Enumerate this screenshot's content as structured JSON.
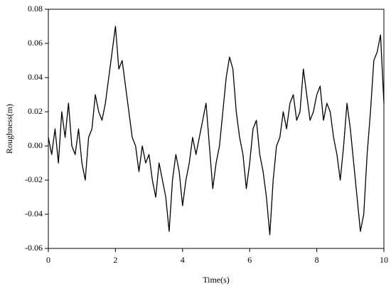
{
  "chart_data": {
    "type": "line",
    "x_label": "Time(s)",
    "y_label": "Roughness(m)",
    "x": [
      0,
      0.1,
      0.2,
      0.3,
      0.4,
      0.5,
      0.6,
      0.7,
      0.8,
      0.9,
      1,
      1.1,
      1.2,
      1.3,
      1.4,
      1.5,
      1.6,
      1.7,
      1.8,
      1.9,
      2,
      2.1,
      2.2,
      2.3,
      2.4,
      2.5,
      2.6,
      2.7,
      2.8,
      2.9,
      3,
      3.1,
      3.2,
      3.3,
      3.4,
      3.5,
      3.6,
      3.7,
      3.8,
      3.9,
      4,
      4.1,
      4.2,
      4.3,
      4.4,
      4.5,
      4.6,
      4.7,
      4.8,
      4.9,
      5,
      5.1,
      5.2,
      5.3,
      5.4,
      5.5,
      5.6,
      5.7,
      5.8,
      5.9,
      6,
      6.1,
      6.2,
      6.3,
      6.4,
      6.5,
      6.6,
      6.7,
      6.8,
      6.9,
      7,
      7.1,
      7.2,
      7.3,
      7.4,
      7.5,
      7.6,
      7.7,
      7.8,
      7.9,
      8,
      8.1,
      8.2,
      8.3,
      8.4,
      8.5,
      8.6,
      8.7,
      8.8,
      8.9,
      9,
      9.1,
      9.2,
      9.3,
      9.4,
      9.5,
      9.6,
      9.7,
      9.8,
      9.9,
      10
    ],
    "series": [
      {
        "color": "#000000",
        "values": [
          0.005,
          -0.005,
          0.01,
          -0.01,
          0.02,
          0.005,
          0.025,
          0,
          -0.005,
          0.01,
          -0.01,
          -0.02,
          0.005,
          0.01,
          0.03,
          0.02,
          0.015,
          0.025,
          0.04,
          0.055,
          0.07,
          0.045,
          0.05,
          0.035,
          0.02,
          0.005,
          0,
          -0.015,
          0,
          -0.01,
          -0.005,
          -0.02,
          -0.03,
          -0.01,
          -0.02,
          -0.03,
          -0.05,
          -0.02,
          -0.005,
          -0.015,
          -0.035,
          -0.02,
          -0.01,
          0.005,
          -0.005,
          0.005,
          0.015,
          0.025,
          0,
          -0.025,
          -0.01,
          0,
          0.02,
          0.04,
          0.052,
          0.045,
          0.02,
          0.005,
          -0.005,
          -0.025,
          -0.01,
          0.01,
          0.015,
          -0.005,
          -0.015,
          -0.03,
          -0.052,
          -0.02,
          0,
          0.005,
          0.02,
          0.01,
          0.025,
          0.03,
          0.015,
          0.02,
          0.045,
          0.03,
          0.015,
          0.02,
          0.03,
          0.035,
          0.015,
          0.025,
          0.02,
          0.005,
          -0.005,
          -0.02,
          0,
          0.025,
          0.01,
          -0.01,
          -0.03,
          -0.05,
          -0.04,
          -0.005,
          0.02,
          0.05,
          0.055,
          0.065,
          0.025
        ]
      }
    ],
    "xlim": [
      0,
      10
    ],
    "xticks": [
      0,
      2,
      4,
      6,
      8,
      10
    ],
    "ylim": [
      -0.06,
      0.08
    ],
    "yticks": [
      -0.06,
      -0.04,
      -0.02,
      {
        "value": 0,
        "label": "0.00"
      },
      0.02,
      0.04,
      0.06,
      0.08
    ]
  }
}
